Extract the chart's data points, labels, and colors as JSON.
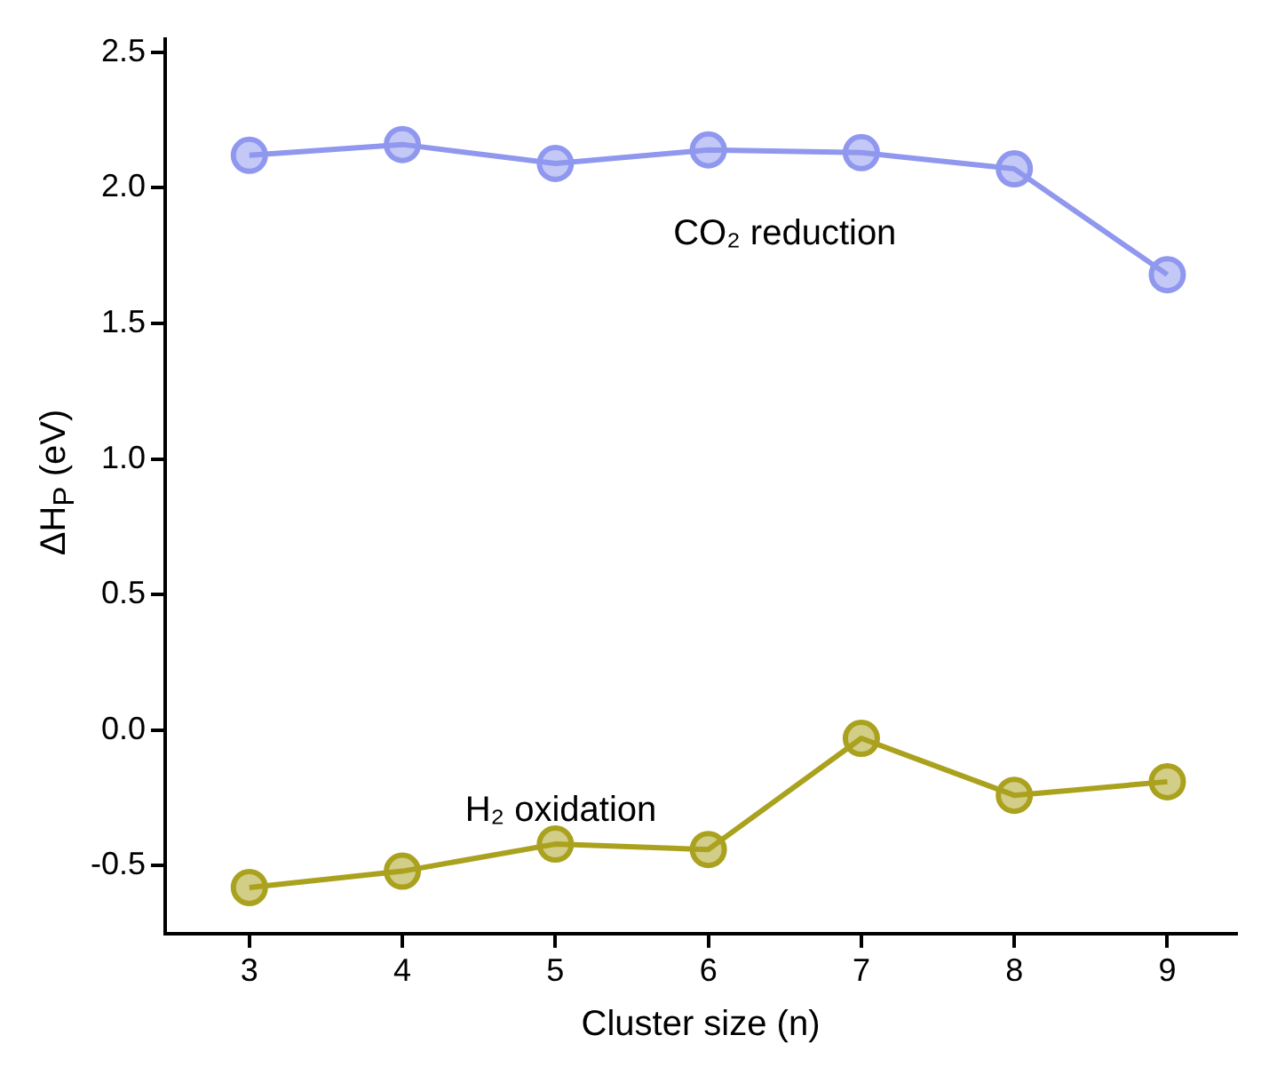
{
  "chart_data": {
    "type": "line",
    "xlabel": "Cluster size (n)",
    "ylabel": "ΔH$_{P}$ (eV)",
    "x": [
      3,
      4,
      5,
      6,
      7,
      8,
      9
    ],
    "series": [
      {
        "name": "CO₂ reduction",
        "color": "#8f98ee",
        "values": [
          2.12,
          2.16,
          2.09,
          2.14,
          2.13,
          2.07,
          1.68
        ]
      },
      {
        "name": "H₂ oxidation",
        "color": "#aaa21e",
        "values": [
          -0.58,
          -0.52,
          -0.42,
          -0.44,
          -0.03,
          -0.24,
          -0.19
        ]
      }
    ],
    "xlim": [
      2.45,
      9.45
    ],
    "xticks": [
      3,
      4,
      5,
      6,
      7,
      8,
      9
    ],
    "ylim": [
      -0.75,
      2.55
    ],
    "yticks": [
      -0.5,
      {
        "value": 0,
        "label": "0.0"
      },
      0.5,
      {
        "value": 1,
        "label": "1.0"
      },
      1.5,
      {
        "value": 2,
        "label": "2.0"
      },
      2.5
    ],
    "grid": false,
    "legend": false,
    "marker": "circle",
    "line_style": "solid"
  }
}
